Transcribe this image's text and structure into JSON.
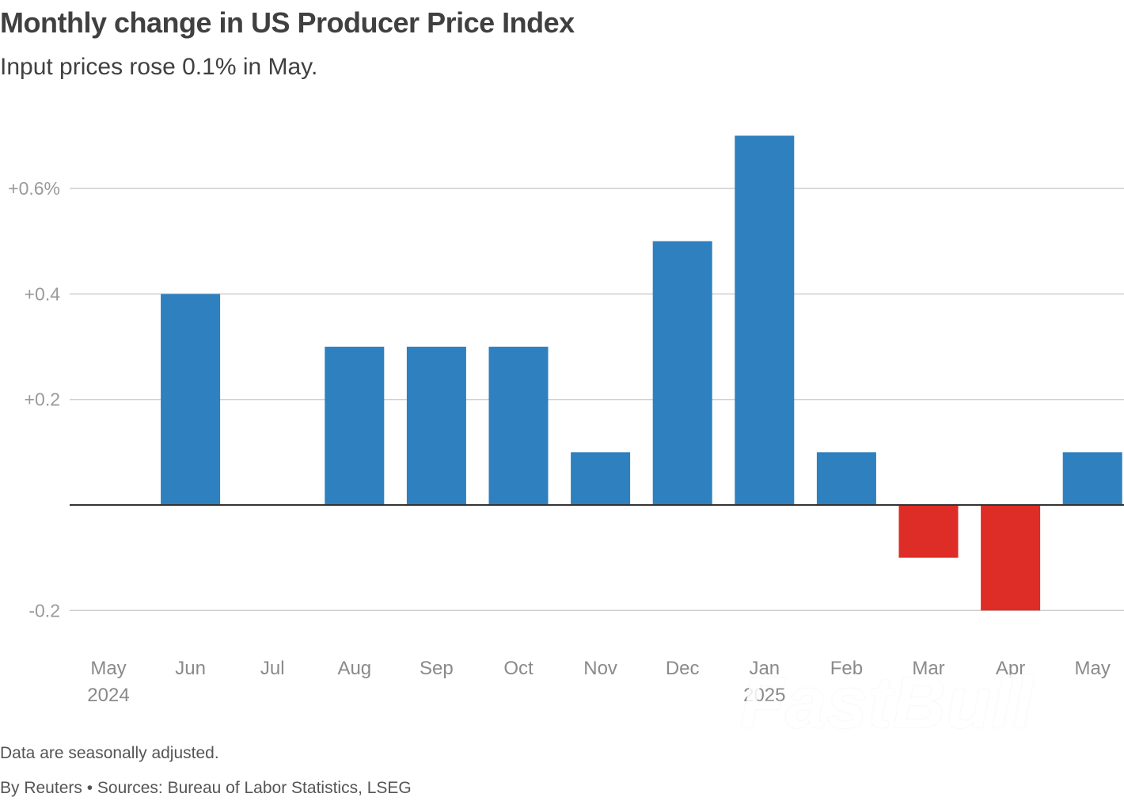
{
  "header": {
    "title": "Monthly change in US Producer Price Index",
    "subtitle": "Input prices rose 0.1% in May."
  },
  "footer": {
    "note": "Data are seasonally adjusted.",
    "credit": "By Reuters • Sources: Bureau of Labor Statistics, LSEG"
  },
  "watermark": "FastBull",
  "colors": {
    "positive": "#2e80bf",
    "negative": "#de2d26",
    "grid": "#cfcfcf",
    "axis": "#333333",
    "tick_text": "#9a9a9a",
    "category_text": "#8a8a8a"
  },
  "chart_data": {
    "type": "bar",
    "title": "Monthly change in US Producer Price Index",
    "subtitle": "Input prices rose 0.1% in May.",
    "categories": [
      "May",
      "Jun",
      "Jul",
      "Aug",
      "Sep",
      "Oct",
      "Nov",
      "Dec",
      "Jan",
      "Feb",
      "Mar",
      "Apr",
      "May"
    ],
    "category_sublabels": [
      "2024",
      "",
      "",
      "",
      "",
      "",
      "",
      "",
      "2025",
      "",
      "",
      "",
      ""
    ],
    "values": [
      0.0,
      0.4,
      0.0,
      0.3,
      0.3,
      0.3,
      0.1,
      0.5,
      0.7,
      0.1,
      -0.1,
      -0.2,
      0.1
    ],
    "y_ticks": [
      {
        "value": 0.6,
        "label": "+0.6%"
      },
      {
        "value": 0.4,
        "label": "+0.4"
      },
      {
        "value": 0.2,
        "label": "+0.2"
      },
      {
        "value": -0.2,
        "label": "-0.2"
      }
    ],
    "ylim": [
      -0.2,
      0.7
    ],
    "xlabel": "",
    "ylabel": "",
    "grid": true,
    "legend": "none"
  }
}
